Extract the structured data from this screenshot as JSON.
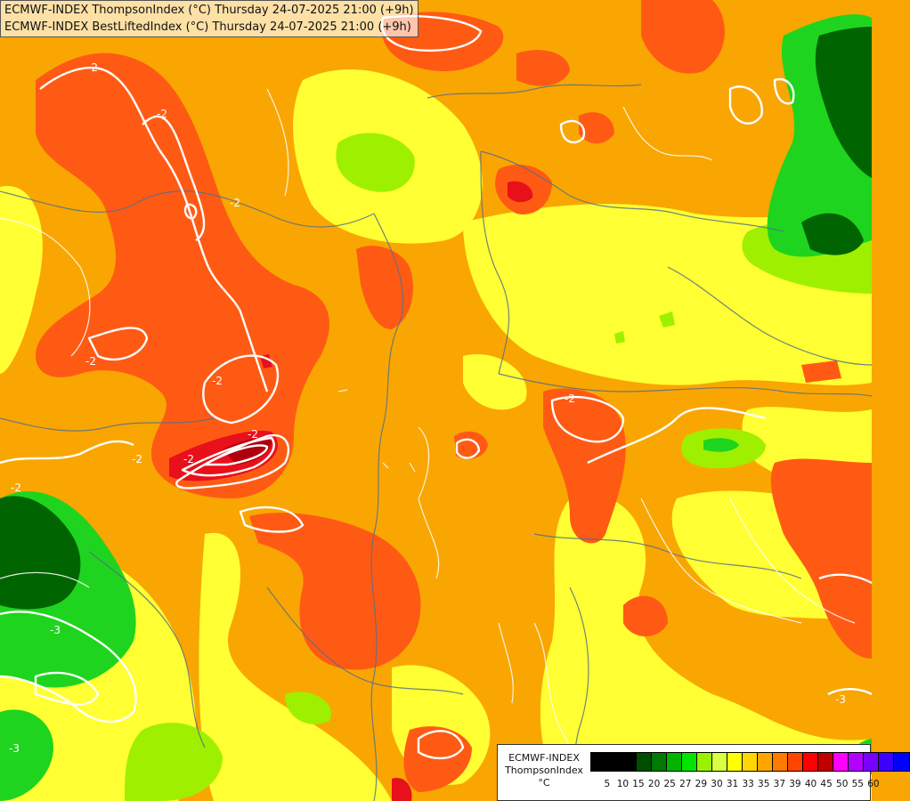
{
  "header": {
    "line1": "ECMWF-INDEX ThompsonIndex (°C) Thursday 24-07-2025 21:00 (+9h)",
    "line2": "ECMWF-INDEX BestLiftedIndex (°C) Thursday 24-07-2025 21:00 (+9h)"
  },
  "legend": {
    "line1": "ECMWF-INDEX",
    "line2": "ThompsonIndex",
    "unit": "°C",
    "ticks": [
      "5",
      "10",
      "15",
      "20",
      "25",
      "27",
      "29",
      "30",
      "31",
      "33",
      "35",
      "37",
      "39",
      "40",
      "45",
      "50",
      "55",
      "60"
    ],
    "colors": [
      "#000000",
      "#000000",
      "#000000",
      "#004d00",
      "#007a00",
      "#00b400",
      "#00e600",
      "#98f200",
      "#d8ff40",
      "#ffff00",
      "#ffd700",
      "#ffa500",
      "#ff7a00",
      "#ff4500",
      "#ff0000",
      "#c00000",
      "#ff00ff",
      "#b400ff",
      "#7a00ff",
      "#3c00ff",
      "#0000ff"
    ]
  },
  "map": {
    "contour_labels": [
      "-2",
      "-2",
      "-2",
      "-2",
      "-2",
      "-2",
      "-2",
      "-2",
      "-2",
      "-2",
      "-3",
      "-3",
      "-3"
    ]
  }
}
